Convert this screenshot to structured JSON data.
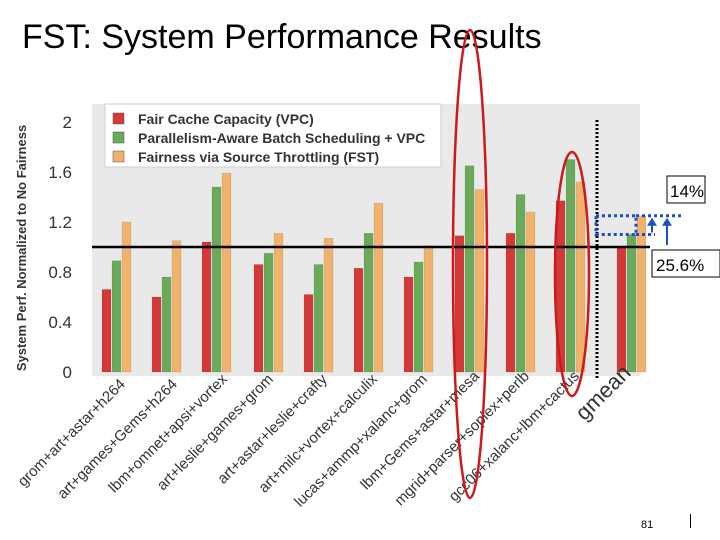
{
  "slide": {
    "title": "FST: System Performance Results",
    "page_number": "81"
  },
  "chart_data": {
    "type": "bar",
    "ylabel": "System Perf. Normalized to No Fairness",
    "ylim": [
      0,
      2
    ],
    "yticks": [
      "0",
      "0.4",
      "0.8",
      "1.2",
      "1.6",
      "2"
    ],
    "ytick_values": [
      0,
      0.4,
      0.8,
      1.2,
      1.6,
      2.0
    ],
    "categories": [
      "grom+art+astar+h264",
      "art+games+Gems+h264",
      "lbm+omnet+apsi+vortex",
      "art+leslie+games+grom",
      "art+astar+leslie+crafty",
      "art+milc+vortex+calculix",
      "lucas+ammp+xalanc+grom",
      "lbm+Gems+astar+mesa",
      "mgrid+parser+soplex+perlb",
      "gcc06+xalanc+lbm+cactus",
      "gmean"
    ],
    "series": [
      {
        "name": "Fair Cache Capacity (VPC)",
        "color": "#d23a3a",
        "values": [
          0.66,
          0.6,
          1.04,
          0.86,
          0.62,
          0.83,
          0.76,
          1.09,
          1.11,
          1.37,
          1.0
        ]
      },
      {
        "name": "Parallelism-Aware Batch Scheduling + VPC",
        "color": "#6aaa5a",
        "values": [
          0.89,
          0.76,
          1.48,
          0.95,
          0.86,
          1.11,
          0.88,
          1.65,
          1.42,
          1.7,
          1.1
        ]
      },
      {
        "name": "Fairness via Source Throttling (FST)",
        "color": "#f0b26c",
        "values": [
          1.2,
          1.05,
          1.59,
          1.11,
          1.07,
          1.35,
          1.01,
          1.46,
          1.28,
          1.52,
          1.25
        ]
      }
    ],
    "baseline": 1.0,
    "legend_position": "top-left",
    "grid": false,
    "annotations": {
      "improvement_vs_pabs": "14%",
      "improvement_vs_vpc": "25.6%"
    },
    "highlighted_categories": [
      "lbm+Gems+astar+mesa",
      "gcc06+xalanc+lbm+cactus"
    ]
  }
}
